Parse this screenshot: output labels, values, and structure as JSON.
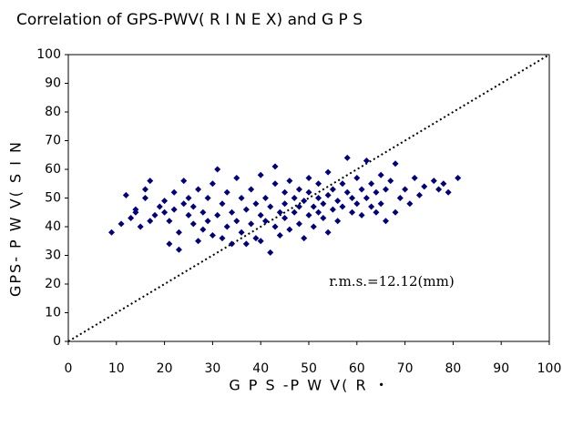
{
  "chart_data": {
    "type": "scatter",
    "title": "Correlation of GPS-PWV( R I  N E X)      and G P S",
    "xlabel": "G P S  -P W V( R  ・",
    "ylabel": "GPS-  P W V( S I  N",
    "annotation": "r.m.s.=12.12(mm)",
    "color": "#000080",
    "grid": false,
    "xlim": [
      0,
      100
    ],
    "ylim": [
      0,
      100
    ],
    "xticks": [
      0,
      10,
      20,
      30,
      40,
      50,
      60,
      70,
      80,
      90,
      100
    ],
    "yticks": [
      0,
      10,
      20,
      30,
      40,
      50,
      60,
      70,
      80,
      90,
      100
    ],
    "x": [
      9,
      11,
      12,
      13,
      14,
      14,
      15,
      16,
      16,
      17,
      17,
      18,
      19,
      20,
      20,
      21,
      21,
      22,
      22,
      23,
      23,
      24,
      24,
      25,
      25,
      26,
      26,
      27,
      27,
      28,
      28,
      29,
      29,
      30,
      30,
      31,
      31,
      32,
      32,
      33,
      33,
      34,
      34,
      35,
      35,
      36,
      36,
      37,
      37,
      38,
      38,
      39,
      39,
      40,
      40,
      40,
      41,
      41,
      42,
      42,
      43,
      43,
      43,
      44,
      44,
      45,
      45,
      45,
      46,
      46,
      47,
      47,
      48,
      48,
      48,
      49,
      49,
      50,
      50,
      50,
      51,
      51,
      52,
      52,
      52,
      53,
      53,
      54,
      54,
      54,
      55,
      55,
      56,
      56,
      57,
      57,
      58,
      58,
      59,
      59,
      60,
      60,
      61,
      61,
      62,
      62,
      63,
      63,
      64,
      64,
      65,
      65,
      66,
      66,
      67,
      68,
      68,
      69,
      70,
      71,
      72,
      73,
      74,
      76,
      77,
      78,
      79,
      81
    ],
    "values": [
      38,
      41,
      51,
      43,
      46,
      45,
      40,
      53,
      50,
      56,
      42,
      44,
      47,
      49,
      45,
      34,
      42,
      52,
      46,
      38,
      32,
      48,
      56,
      44,
      50,
      41,
      47,
      53,
      35,
      45,
      39,
      50,
      42,
      37,
      55,
      44,
      60,
      48,
      36,
      52,
      40,
      45,
      34,
      57,
      42,
      38,
      50,
      46,
      34,
      53,
      41,
      36,
      48,
      44,
      58,
      35,
      50,
      42,
      31,
      47,
      55,
      40,
      61,
      45,
      37,
      52,
      48,
      43,
      56,
      39,
      50,
      45,
      41,
      53,
      47,
      36,
      49,
      44,
      52,
      57,
      47,
      40,
      50,
      55,
      45,
      43,
      48,
      59,
      51,
      38,
      46,
      53,
      49,
      42,
      55,
      47,
      52,
      64,
      45,
      50,
      48,
      57,
      53,
      44,
      50,
      63,
      47,
      55,
      45,
      52,
      58,
      48,
      42,
      53,
      56,
      62,
      45,
      50,
      53,
      48,
      57,
      51,
      54,
      56,
      53,
      55,
      52,
      57
    ]
  }
}
